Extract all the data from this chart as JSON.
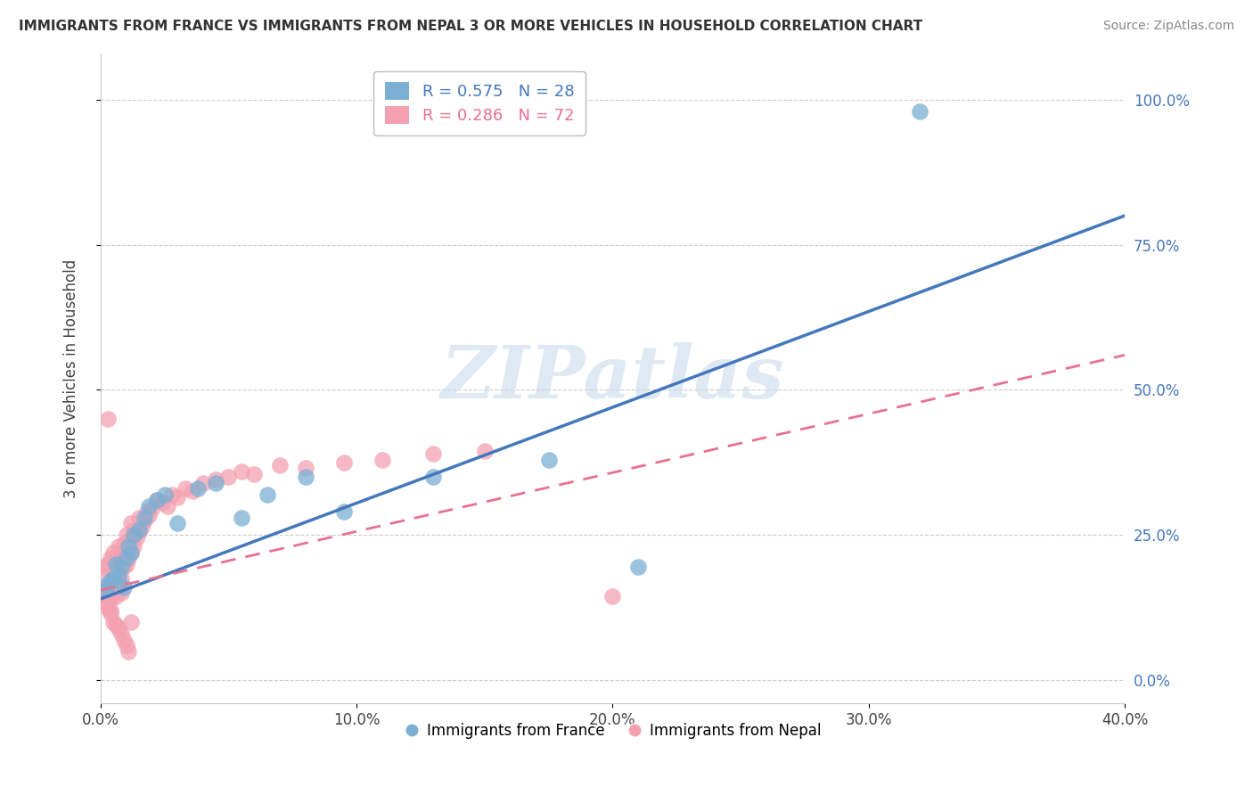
{
  "title": "IMMIGRANTS FROM FRANCE VS IMMIGRANTS FROM NEPAL 3 OR MORE VEHICLES IN HOUSEHOLD CORRELATION CHART",
  "source": "Source: ZipAtlas.com",
  "ylabel": "3 or more Vehicles in Household",
  "x_min": 0.0,
  "x_max": 0.4,
  "y_min": -0.04,
  "y_max": 1.08,
  "x_ticks": [
    0.0,
    0.1,
    0.2,
    0.3,
    0.4
  ],
  "x_tick_labels": [
    "0.0%",
    "10.0%",
    "20.0%",
    "30.0%",
    "40.0%"
  ],
  "y_ticks": [
    0.0,
    0.25,
    0.5,
    0.75,
    1.0
  ],
  "y_tick_labels": [
    "0.0%",
    "25.0%",
    "50.0%",
    "75.0%",
    "100.0%"
  ],
  "france_color": "#7BAFD4",
  "nepal_color": "#F4A0B0",
  "france_line_color": "#4477BB",
  "nepal_line_color": "#E87090",
  "france_R": 0.575,
  "france_N": 28,
  "nepal_R": 0.286,
  "nepal_N": 72,
  "watermark": "ZIPatlas",
  "france_line_x0": 0.0,
  "france_line_y0": 0.14,
  "france_line_x1": 0.4,
  "france_line_y1": 0.8,
  "nepal_line_x0": 0.0,
  "nepal_line_y0": 0.155,
  "nepal_line_x1": 0.4,
  "nepal_line_y1": 0.56,
  "france_scatter_x": [
    0.002,
    0.003,
    0.004,
    0.005,
    0.006,
    0.007,
    0.008,
    0.009,
    0.01,
    0.011,
    0.012,
    0.013,
    0.015,
    0.017,
    0.019,
    0.022,
    0.025,
    0.03,
    0.038,
    0.045,
    0.055,
    0.065,
    0.08,
    0.095,
    0.13,
    0.175,
    0.21,
    0.32
  ],
  "france_scatter_y": [
    0.155,
    0.165,
    0.17,
    0.175,
    0.2,
    0.18,
    0.195,
    0.16,
    0.21,
    0.23,
    0.22,
    0.25,
    0.26,
    0.28,
    0.3,
    0.31,
    0.32,
    0.27,
    0.33,
    0.34,
    0.28,
    0.32,
    0.35,
    0.29,
    0.35,
    0.38,
    0.195,
    0.98
  ],
  "nepal_scatter_x": [
    0.001,
    0.001,
    0.002,
    0.002,
    0.002,
    0.003,
    0.003,
    0.003,
    0.004,
    0.004,
    0.004,
    0.005,
    0.005,
    0.005,
    0.006,
    0.006,
    0.006,
    0.007,
    0.007,
    0.007,
    0.008,
    0.008,
    0.008,
    0.009,
    0.009,
    0.01,
    0.01,
    0.011,
    0.011,
    0.012,
    0.012,
    0.013,
    0.013,
    0.014,
    0.015,
    0.015,
    0.016,
    0.017,
    0.018,
    0.019,
    0.02,
    0.022,
    0.024,
    0.026,
    0.028,
    0.03,
    0.033,
    0.036,
    0.04,
    0.045,
    0.05,
    0.055,
    0.06,
    0.07,
    0.08,
    0.095,
    0.11,
    0.13,
    0.15,
    0.003,
    0.004,
    0.005,
    0.006,
    0.007,
    0.008,
    0.009,
    0.01,
    0.011,
    0.012,
    0.2,
    0.003,
    0.004
  ],
  "nepal_scatter_y": [
    0.135,
    0.18,
    0.145,
    0.195,
    0.155,
    0.16,
    0.2,
    0.13,
    0.17,
    0.21,
    0.14,
    0.175,
    0.22,
    0.15,
    0.165,
    0.205,
    0.145,
    0.18,
    0.23,
    0.16,
    0.175,
    0.215,
    0.15,
    0.195,
    0.235,
    0.2,
    0.25,
    0.21,
    0.24,
    0.22,
    0.27,
    0.23,
    0.26,
    0.245,
    0.255,
    0.28,
    0.265,
    0.275,
    0.29,
    0.285,
    0.295,
    0.31,
    0.305,
    0.3,
    0.32,
    0.315,
    0.33,
    0.325,
    0.34,
    0.345,
    0.35,
    0.36,
    0.355,
    0.37,
    0.365,
    0.375,
    0.38,
    0.39,
    0.395,
    0.125,
    0.115,
    0.1,
    0.095,
    0.09,
    0.08,
    0.07,
    0.06,
    0.05,
    0.1,
    0.145,
    0.45,
    0.12
  ]
}
